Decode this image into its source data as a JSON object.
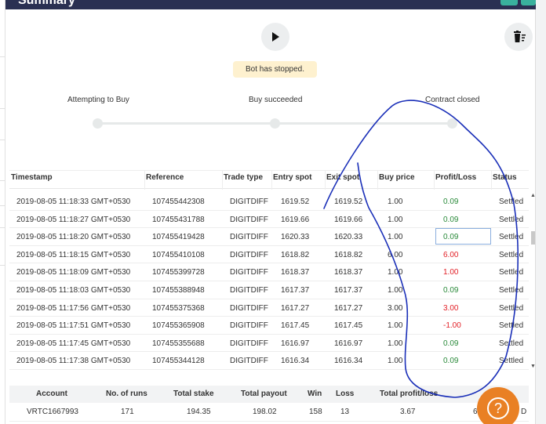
{
  "window": {
    "title": "Summary"
  },
  "bot_status": "Bot has stopped.",
  "steps": [
    "Attempting to Buy",
    "Buy succeeded",
    "Contract closed"
  ],
  "table": {
    "columns": [
      "Timestamp",
      "Reference",
      "Trade type",
      "Entry spot",
      "Exit spot",
      "Buy price",
      "Profit/Loss",
      "Status"
    ],
    "rows": [
      {
        "timestamp": "2019-08-05 11:18:33 GMT+0530",
        "reference": "107455442308",
        "trade_type": "DIGITDIFF",
        "entry_spot": "1619.52",
        "exit_spot": "1619.52",
        "buy_price": "1.00",
        "profit_loss": "0.09",
        "status": "Settled"
      },
      {
        "timestamp": "2019-08-05 11:18:27 GMT+0530",
        "reference": "107455431788",
        "trade_type": "DIGITDIFF",
        "entry_spot": "1619.66",
        "exit_spot": "1619.66",
        "buy_price": "1.00",
        "profit_loss": "0.09",
        "status": "Settled"
      },
      {
        "timestamp": "2019-08-05 11:18:20 GMT+0530",
        "reference": "107455419428",
        "trade_type": "DIGITDIFF",
        "entry_spot": "1620.33",
        "exit_spot": "1620.33",
        "buy_price": "1.00",
        "profit_loss": "0.09",
        "status": "Settled"
      },
      {
        "timestamp": "2019-08-05 11:18:15 GMT+0530",
        "reference": "107455410108",
        "trade_type": "DIGITDIFF",
        "entry_spot": "1618.82",
        "exit_spot": "1618.82",
        "buy_price": "6.00",
        "profit_loss": "6.00",
        "status": "Settled"
      },
      {
        "timestamp": "2019-08-05 11:18:09 GMT+0530",
        "reference": "107455399728",
        "trade_type": "DIGITDIFF",
        "entry_spot": "1618.37",
        "exit_spot": "1618.37",
        "buy_price": "1.00",
        "profit_loss": "1.00",
        "status": "Settled"
      },
      {
        "timestamp": "2019-08-05 11:18:03 GMT+0530",
        "reference": "107455388948",
        "trade_type": "DIGITDIFF",
        "entry_spot": "1617.37",
        "exit_spot": "1617.37",
        "buy_price": "1.00",
        "profit_loss": "0.09",
        "status": "Settled"
      },
      {
        "timestamp": "2019-08-05 11:17:56 GMT+0530",
        "reference": "107455375368",
        "trade_type": "DIGITDIFF",
        "entry_spot": "1617.27",
        "exit_spot": "1617.27",
        "buy_price": "3.00",
        "profit_loss": "3.00",
        "status": "Settled"
      },
      {
        "timestamp": "2019-08-05 11:17:51 GMT+0530",
        "reference": "107455365908",
        "trade_type": "DIGITDIFF",
        "entry_spot": "1617.45",
        "exit_spot": "1617.45",
        "buy_price": "1.00",
        "profit_loss": "-1.00",
        "status": "Settled"
      },
      {
        "timestamp": "2019-08-05 11:17:45 GMT+0530",
        "reference": "107455355688",
        "trade_type": "DIGITDIFF",
        "entry_spot": "1616.97",
        "exit_spot": "1616.97",
        "buy_price": "1.00",
        "profit_loss": "0.09",
        "status": "Settled"
      },
      {
        "timestamp": "2019-08-05 11:17:38 GMT+0530",
        "reference": "107455344128",
        "trade_type": "DIGITDIFF",
        "entry_spot": "1616.34",
        "exit_spot": "1616.34",
        "buy_price": "1.00",
        "profit_loss": "0.09",
        "status": "Settled"
      }
    ]
  },
  "summary": {
    "headers": [
      "Account",
      "No. of runs",
      "Total stake",
      "Total payout",
      "Win",
      "Loss",
      "Total profit/loss"
    ],
    "account": "VRTC1667993",
    "runs": "171",
    "total_stake": "194.35",
    "total_payout": "198.02",
    "win": "158",
    "loss": "13",
    "total_profit_loss": "3.67",
    "trailing_fragment": "6",
    "trailing_fragment_2": "D"
  },
  "colors": {
    "header_bg": "#2a3052",
    "profit": "#2a8a3a",
    "loss": "#e21f26",
    "status_pill": "#fef1cf",
    "help_button": "#e98024",
    "scribble": "#1a2fb8"
  },
  "icons": {
    "play": "play-icon",
    "clear": "trash-icon",
    "help": "question-icon"
  }
}
